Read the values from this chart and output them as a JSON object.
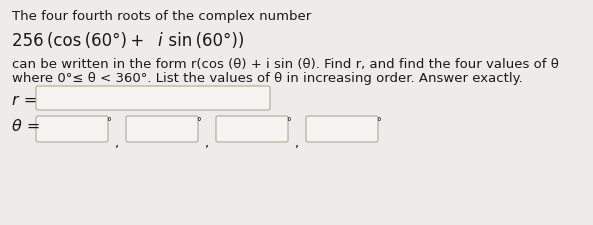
{
  "line1": "The four fourth roots of the complex number",
  "line2_pre": "256 (cos (60°) + ",
  "line2_i": "i",
  "line2_post": " sin (60°))",
  "line3": "can be written in the form r(cos (θ) + i sin (θ). Find r, and find the four values of θ",
  "line4": "where 0°≤ θ < 360°. List the values of θ in increasing order. Answer exactly.",
  "label_r": "r =",
  "label_theta": "θ =",
  "bg_color": "#eeece9",
  "box_fill": "#f5f3f0",
  "box_edge": "#b0a898",
  "text_color": "#1a1a1a",
  "font_size_body": 9.5,
  "font_size_formula": 12.0,
  "font_size_label": 11.5,
  "font_size_degree": 7.0
}
